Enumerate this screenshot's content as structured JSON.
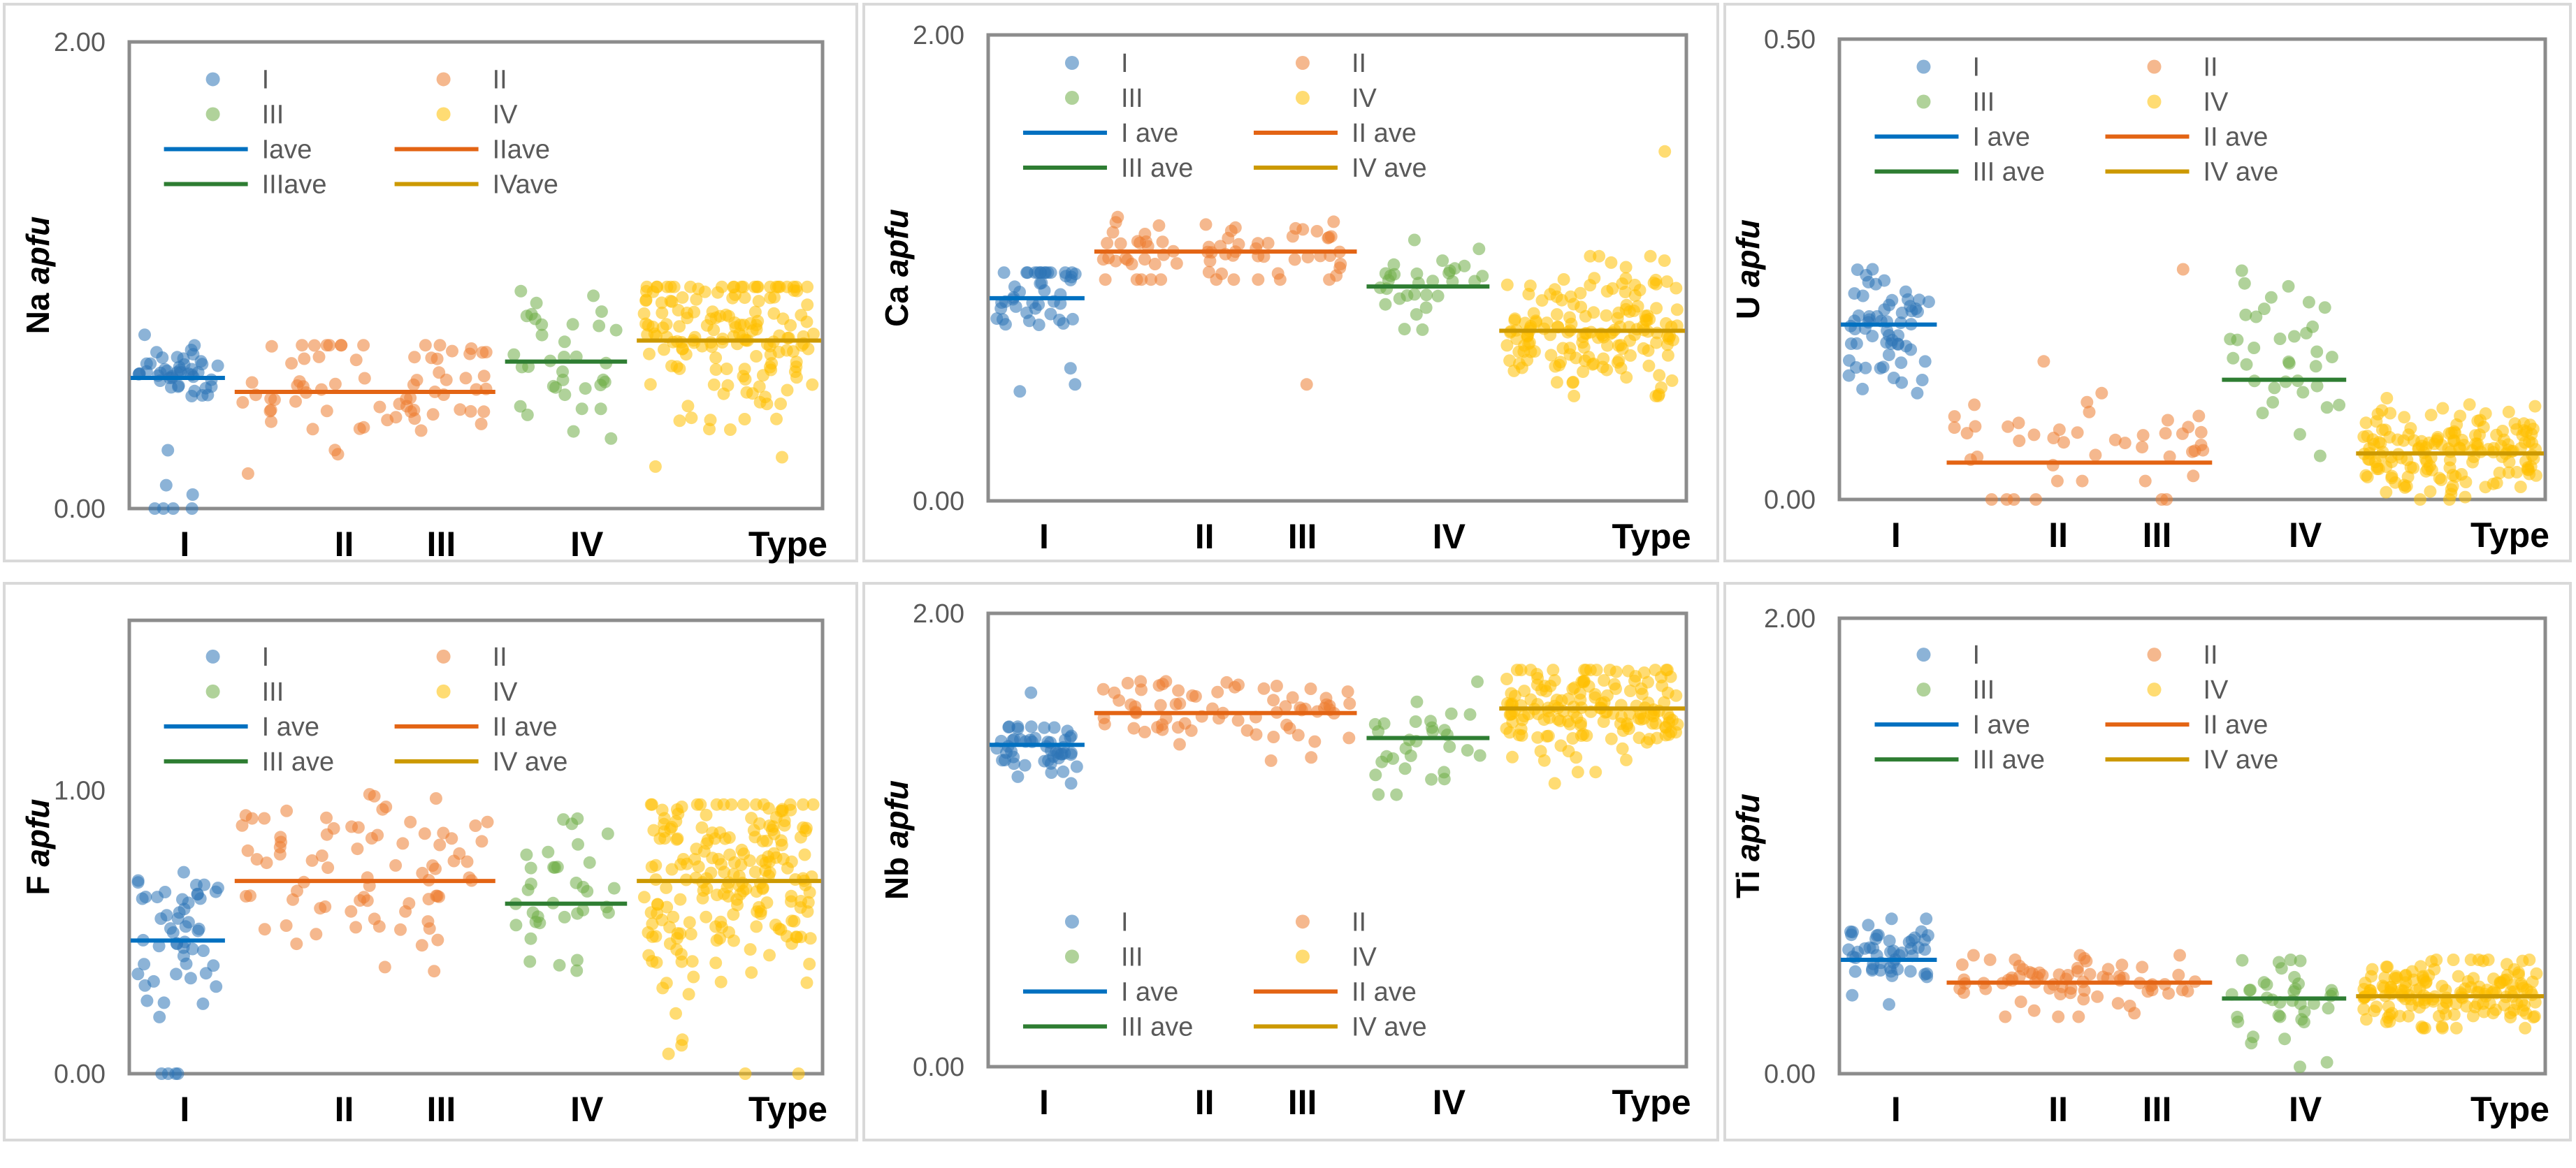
{
  "colors": {
    "I": "#2E75B6",
    "II": "#ED7D31",
    "III": "#70AD47",
    "IV": "#FFC000",
    "I_ave": "#0070C0",
    "II_ave": "#E36414",
    "III_ave": "#2E7D32",
    "IV_ave": "#CC9900"
  },
  "chart_data": [
    {
      "type": "scatter",
      "id": "Na",
      "ylabel_element": "Na",
      "ylabel_unit": "apfu",
      "ylim": [
        0,
        2
      ],
      "yticks": [
        "0.00",
        "2.00"
      ],
      "x_type_labels": [
        "I",
        "II",
        "III",
        "IV",
        "Type"
      ],
      "legend": {
        "series": [
          "I",
          "II",
          "III",
          "IV"
        ],
        "ave": [
          "Iave",
          "IIave",
          "IIIave",
          "IVave"
        ]
      },
      "groups": [
        {
          "name": "I",
          "n": 45,
          "min": 0.45,
          "max": 0.75,
          "avg": 0.56,
          "center": 0.6,
          "outliers": [
            0.0,
            0.0,
            0.0,
            0.0,
            0.06,
            0.1,
            0.25
          ]
        },
        {
          "name": "II",
          "n": 70,
          "min": 0.2,
          "max": 0.7,
          "avg": 0.5,
          "center": 0.52,
          "outliers": [
            0.15
          ]
        },
        {
          "name": "III",
          "n": 35,
          "min": 0.3,
          "max": 0.95,
          "avg": 0.63,
          "center": 0.62,
          "outliers": []
        },
        {
          "name": "IV",
          "n": 160,
          "min": 0.2,
          "max": 0.95,
          "avg": 0.72,
          "center": 0.75,
          "outliers": [
            0.18,
            0.22
          ]
        }
      ]
    },
    {
      "type": "scatter",
      "id": "Ca",
      "ylabel_element": "Ca",
      "ylabel_unit": "apfu",
      "ylim": [
        0,
        2
      ],
      "yticks": [
        "0.00",
        "2.00"
      ],
      "x_type_labels": [
        "I",
        "II",
        "III",
        "IV",
        "Type"
      ],
      "legend": {
        "series": [
          "I",
          "II",
          "III",
          "IV"
        ],
        "ave": [
          "I ave",
          "II ave",
          "III ave",
          "IV ave"
        ]
      },
      "groups": [
        {
          "name": "I",
          "n": 45,
          "min": 0.5,
          "max": 0.98,
          "avg": 0.87,
          "center": 0.9,
          "outliers": [
            0.47,
            0.5
          ]
        },
        {
          "name": "II",
          "n": 70,
          "min": 0.95,
          "max": 1.25,
          "avg": 1.07,
          "center": 1.07,
          "outliers": [
            0.5
          ]
        },
        {
          "name": "III",
          "n": 30,
          "min": 0.7,
          "max": 1.12,
          "avg": 0.92,
          "center": 0.92,
          "outliers": []
        },
        {
          "name": "IV",
          "n": 160,
          "min": 0.45,
          "max": 1.05,
          "avg": 0.73,
          "center": 0.73,
          "outliers": [
            1.5
          ]
        }
      ]
    },
    {
      "type": "scatter",
      "id": "U",
      "ylabel_element": "U",
      "ylabel_unit": "apfu",
      "ylim": [
        0,
        0.5
      ],
      "yticks": [
        "0.00",
        "0.50"
      ],
      "x_type_labels": [
        "I",
        "II",
        "III",
        "IV",
        "Type"
      ],
      "legend": {
        "series": [
          "I",
          "II",
          "III",
          "IV"
        ],
        "ave": [
          "I ave",
          "II ave",
          "III ave",
          "IV ave"
        ]
      },
      "groups": [
        {
          "name": "I",
          "n": 60,
          "min": 0.11,
          "max": 0.25,
          "avg": 0.19,
          "center": 0.19,
          "outliers": []
        },
        {
          "name": "II",
          "n": 40,
          "min": 0.02,
          "max": 0.15,
          "avg": 0.04,
          "center": 0.07,
          "outliers": [
            0.0,
            0.0,
            0.0,
            0.0,
            0.0,
            0.0,
            0.25
          ]
        },
        {
          "name": "III",
          "n": 35,
          "min": 0.02,
          "max": 0.25,
          "avg": 0.13,
          "center": 0.14,
          "outliers": []
        },
        {
          "name": "IV",
          "n": 160,
          "min": 0.0,
          "max": 0.11,
          "avg": 0.05,
          "center": 0.05,
          "outliers": []
        }
      ]
    },
    {
      "type": "scatter",
      "id": "F",
      "ylabel_element": "F",
      "ylabel_unit": "apfu",
      "ylim": [
        0,
        1.6
      ],
      "yticks": [
        "0.00",
        "1.00"
      ],
      "x_type_labels": [
        "I",
        "II",
        "III",
        "IV",
        "Type"
      ],
      "legend": {
        "series": [
          "I",
          "II",
          "III",
          "IV"
        ],
        "ave": [
          "I ave",
          "II ave",
          "III ave",
          "IV ave"
        ]
      },
      "groups": [
        {
          "name": "I",
          "n": 50,
          "min": 0.2,
          "max": 0.75,
          "avg": 0.47,
          "center": 0.5,
          "outliers": [
            0.0,
            0.0,
            0.0,
            0.0
          ]
        },
        {
          "name": "II",
          "n": 80,
          "min": 0.3,
          "max": 1.0,
          "avg": 0.68,
          "center": 0.68,
          "outliers": []
        },
        {
          "name": "III",
          "n": 35,
          "min": 0.25,
          "max": 0.9,
          "avg": 0.6,
          "center": 0.6,
          "outliers": []
        },
        {
          "name": "IV",
          "n": 200,
          "min": 0.2,
          "max": 0.95,
          "avg": 0.68,
          "center": 0.68,
          "outliers": [
            0.0,
            0.0,
            0.07,
            0.1,
            0.12
          ]
        }
      ]
    },
    {
      "type": "scatter",
      "id": "Nb",
      "ylabel_element": "Nb",
      "ylabel_unit": "apfu",
      "ylim": [
        0,
        2
      ],
      "yticks": [
        "0.00",
        "2.00"
      ],
      "x_type_labels": [
        "I",
        "II",
        "III",
        "IV",
        "Type"
      ],
      "legend": {
        "series": [
          "I",
          "II",
          "III",
          "IV"
        ],
        "ave": [
          "I ave",
          "II ave",
          "III ave",
          "IV ave"
        ]
      },
      "groups": [
        {
          "name": "I",
          "n": 50,
          "min": 1.25,
          "max": 1.5,
          "avg": 1.42,
          "center": 1.4,
          "outliers": [
            1.65
          ]
        },
        {
          "name": "II",
          "n": 70,
          "min": 1.35,
          "max": 1.7,
          "avg": 1.56,
          "center": 1.55,
          "outliers": []
        },
        {
          "name": "III",
          "n": 30,
          "min": 1.2,
          "max": 1.7,
          "avg": 1.45,
          "center": 1.45,
          "outliers": []
        },
        {
          "name": "IV",
          "n": 160,
          "min": 1.3,
          "max": 1.75,
          "avg": 1.58,
          "center": 1.58,
          "outliers": [
            1.25
          ]
        }
      ]
    },
    {
      "type": "scatter",
      "id": "Ti",
      "ylabel_element": "Ti",
      "ylabel_unit": "apfu",
      "ylim": [
        0,
        2
      ],
      "yticks": [
        "0.00",
        "2.00"
      ],
      "x_type_labels": [
        "I",
        "II",
        "III",
        "IV",
        "Type"
      ],
      "legend": {
        "series": [
          "I",
          "II",
          "III",
          "IV"
        ],
        "ave": [
          "I ave",
          "II ave",
          "III ave",
          "IV ave"
        ]
      },
      "groups": [
        {
          "name": "I",
          "n": 50,
          "min": 0.3,
          "max": 0.68,
          "avg": 0.5,
          "center": 0.52,
          "outliers": []
        },
        {
          "name": "II",
          "n": 70,
          "min": 0.25,
          "max": 0.52,
          "avg": 0.4,
          "center": 0.4,
          "outliers": []
        },
        {
          "name": "III",
          "n": 35,
          "min": 0.05,
          "max": 0.5,
          "avg": 0.33,
          "center": 0.32,
          "outliers": [
            0.03
          ]
        },
        {
          "name": "IV",
          "n": 160,
          "min": 0.2,
          "max": 0.5,
          "avg": 0.34,
          "center": 0.36,
          "outliers": []
        }
      ]
    }
  ]
}
